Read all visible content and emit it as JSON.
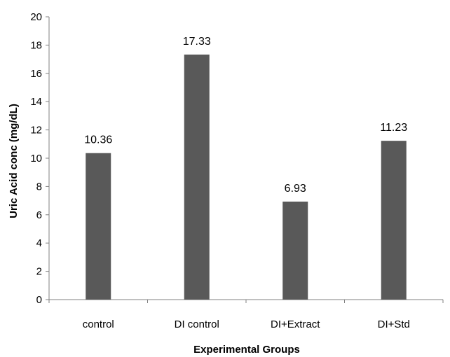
{
  "chart_data": {
    "type": "bar",
    "title": "",
    "xlabel": "Experimental Groups",
    "ylabel": "Uric Acid conc (mg/dL)",
    "categories": [
      "control",
      "DI control",
      "DI+Extract",
      "DI+Std"
    ],
    "values": [
      10.36,
      17.33,
      6.93,
      11.23
    ],
    "data_labels": [
      "10.36",
      "17.33",
      "6.93",
      "11.23"
    ],
    "ylim": [
      0,
      20
    ],
    "yticks": [
      0,
      2,
      4,
      6,
      8,
      10,
      12,
      14,
      16,
      18,
      20
    ],
    "grid": false,
    "legend": "none",
    "bar_color": "#595959"
  }
}
